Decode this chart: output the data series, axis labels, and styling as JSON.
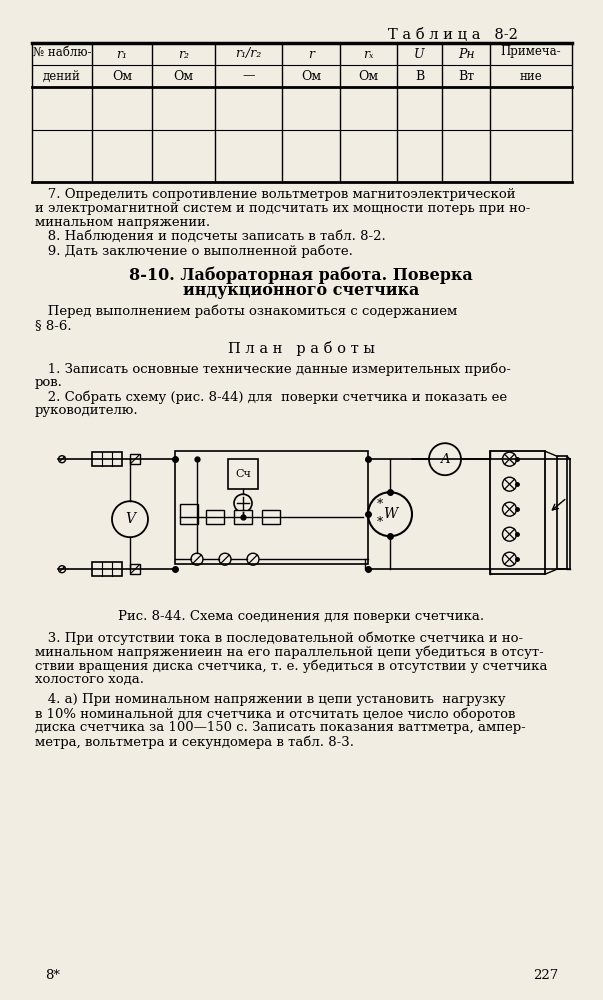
{
  "bg_color": "#f2ede3",
  "title_table": "Таблица 8-2",
  "table_headers_row1": [
    "r₁",
    "r₂",
    "r₁/r₂",
    "r",
    "rₓ",
    "U",
    "Pн"
  ],
  "table_headers_row2": [
    "Ом",
    "Ом",
    "—",
    "Ом",
    "Ом",
    "В",
    "Вт"
  ],
  "para7_lines": [
    "   7. Определить сопротивление вольтметров магнитоэлектрической",
    "и электромагнитной систем и подсчитать их мощности потерь при но-",
    "минальном напряжении."
  ],
  "para8": "   8. Наблюдения и подсчеты записать в табл. 8-2.",
  "para9": "   9. Дать заключение о выполненной работе.",
  "section_title_line1": "8-10. Лабораторная работа. Поверка",
  "section_title_line2": "индукционного счетчика",
  "intro_text": "   Перед выполнением работы ознакомиться с содержанием",
  "para_s8": "§ 8-6.",
  "plan_title": "П л а н   р а б о т ы",
  "plan1_lines": [
    "   1. Записать основные технические данные измерительных прибо-",
    "ров."
  ],
  "plan2_lines": [
    "   2. Собрать схему (рис. 8-44) для  поверки счетчика и показать ее",
    "руководителю."
  ],
  "fig_caption": "Рис. 8-44. Схема соединения для поверки счетчика.",
  "plan3_lines": [
    "   3. При отсутствии тока в последовательной обмотке счетчика и но-",
    "минальном напряжениеин на его параллельной цепи убедиться в отсут-",
    "ствии вращения диска счетчика, т. е. убедиться в отсутствии у счетчика",
    "холостого хода."
  ],
  "plan4_lines": [
    "   4. а) При номинальном напряжении в цепи установить  нагрузку",
    "в 10% номинальной для счетчика и отсчитать целое число оборотов",
    "диска счетчика за 100—150 с. Записать показания ваттметра, ампер-",
    "метра, вольтметра и секундомера в табл. 8-3."
  ],
  "page_num_left": "8*",
  "page_num_right": "227"
}
